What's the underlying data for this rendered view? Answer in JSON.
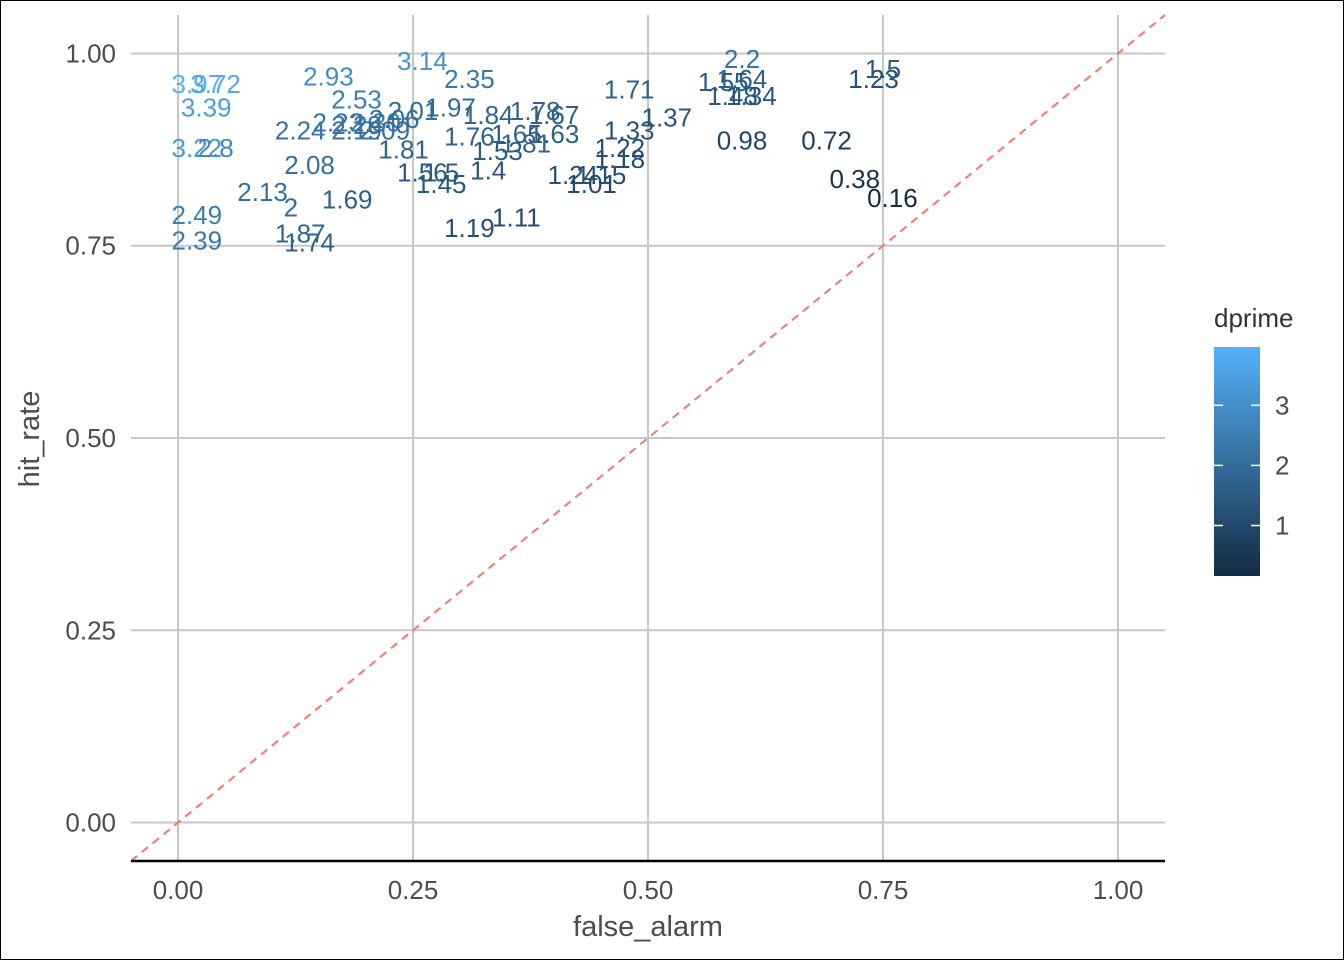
{
  "chart_data": {
    "type": "scatter",
    "xlabel": "false_alarm",
    "ylabel": "hit_rate",
    "xlim": [
      -0.05,
      1.05
    ],
    "ylim": [
      -0.05,
      1.05
    ],
    "x_ticks": [
      "0.00",
      "0.25",
      "0.50",
      "0.75",
      "1.00"
    ],
    "y_ticks": [
      "0.00",
      "0.25",
      "0.50",
      "0.75",
      "1.00"
    ],
    "grid": true,
    "reference_line": {
      "type": "identity",
      "color": "#F8766D",
      "style": "dashed"
    },
    "color_by": "dprime",
    "colors": {
      "low": "#132B43",
      "high": "#56B1F7"
    },
    "legend": {
      "title": "dprime",
      "position": "right",
      "ticks": [
        "1",
        "2",
        "3"
      ],
      "range": [
        0.16,
        3.97
      ]
    },
    "points": [
      {
        "x": 0.02,
        "y": 0.96,
        "label": "3.97"
      },
      {
        "x": 0.04,
        "y": 0.96,
        "label": "3.72"
      },
      {
        "x": 0.03,
        "y": 0.93,
        "label": "3.39"
      },
      {
        "x": 0.02,
        "y": 0.877,
        "label": "3.22"
      },
      {
        "x": 0.04,
        "y": 0.877,
        "label": "2.8"
      },
      {
        "x": 0.26,
        "y": 0.99,
        "label": "3.14"
      },
      {
        "x": 0.16,
        "y": 0.97,
        "label": "2.93"
      },
      {
        "x": 0.19,
        "y": 0.94,
        "label": "2.53"
      },
      {
        "x": 0.31,
        "y": 0.967,
        "label": "2.35"
      },
      {
        "x": 0.02,
        "y": 0.79,
        "label": "2.49"
      },
      {
        "x": 0.02,
        "y": 0.757,
        "label": "2.39"
      },
      {
        "x": 0.09,
        "y": 0.82,
        "label": "2.13"
      },
      {
        "x": 0.12,
        "y": 0.8,
        "label": "2"
      },
      {
        "x": 0.14,
        "y": 0.855,
        "label": "2.08"
      },
      {
        "x": 0.13,
        "y": 0.766,
        "label": "1.87"
      },
      {
        "x": 0.14,
        "y": 0.754,
        "label": "1.74"
      },
      {
        "x": 0.18,
        "y": 0.81,
        "label": "1.69"
      },
      {
        "x": 0.13,
        "y": 0.9,
        "label": "2.24"
      },
      {
        "x": 0.17,
        "y": 0.91,
        "label": "2.23"
      },
      {
        "x": 0.19,
        "y": 0.907,
        "label": "2.29"
      },
      {
        "x": 0.21,
        "y": 0.91,
        "label": "2.30"
      },
      {
        "x": 0.23,
        "y": 0.915,
        "label": "2.06"
      },
      {
        "x": 0.22,
        "y": 0.9,
        "label": "2.09"
      },
      {
        "x": 0.19,
        "y": 0.9,
        "label": "2.19"
      },
      {
        "x": 0.25,
        "y": 0.925,
        "label": "2.01"
      },
      {
        "x": 0.29,
        "y": 0.93,
        "label": "1.97"
      },
      {
        "x": 0.33,
        "y": 0.92,
        "label": "1.84"
      },
      {
        "x": 0.38,
        "y": 0.925,
        "label": "1.78"
      },
      {
        "x": 0.4,
        "y": 0.92,
        "label": "1.67"
      },
      {
        "x": 0.24,
        "y": 0.875,
        "label": "1.81"
      },
      {
        "x": 0.31,
        "y": 0.892,
        "label": "1.76"
      },
      {
        "x": 0.36,
        "y": 0.895,
        "label": "1.65"
      },
      {
        "x": 0.4,
        "y": 0.895,
        "label": "1.63"
      },
      {
        "x": 0.34,
        "y": 0.873,
        "label": "1.53"
      },
      {
        "x": 0.26,
        "y": 0.845,
        "label": "1.56"
      },
      {
        "x": 0.28,
        "y": 0.845,
        "label": "1.5"
      },
      {
        "x": 0.28,
        "y": 0.83,
        "label": "1.45"
      },
      {
        "x": 0.33,
        "y": 0.848,
        "label": "1.4"
      },
      {
        "x": 0.31,
        "y": 0.773,
        "label": "1.19"
      },
      {
        "x": 0.36,
        "y": 0.787,
        "label": "1.11"
      },
      {
        "x": 0.37,
        "y": 0.883,
        "label": "1.81"
      },
      {
        "x": 0.42,
        "y": 0.842,
        "label": "1.24"
      },
      {
        "x": 0.45,
        "y": 0.842,
        "label": "1.15"
      },
      {
        "x": 0.44,
        "y": 0.83,
        "label": "1.01"
      },
      {
        "x": 0.47,
        "y": 0.877,
        "label": "1.22"
      },
      {
        "x": 0.47,
        "y": 0.863,
        "label": "1.18"
      },
      {
        "x": 0.48,
        "y": 0.9,
        "label": "1.33"
      },
      {
        "x": 0.52,
        "y": 0.917,
        "label": "1.37"
      },
      {
        "x": 0.48,
        "y": 0.953,
        "label": "1.71"
      },
      {
        "x": 0.6,
        "y": 0.993,
        "label": "2.2"
      },
      {
        "x": 0.6,
        "y": 0.967,
        "label": "1.64"
      },
      {
        "x": 0.58,
        "y": 0.963,
        "label": "1.55"
      },
      {
        "x": 0.59,
        "y": 0.945,
        "label": "1.48"
      },
      {
        "x": 0.61,
        "y": 0.945,
        "label": "1.34"
      },
      {
        "x": 0.75,
        "y": 0.98,
        "label": "1.5"
      },
      {
        "x": 0.74,
        "y": 0.967,
        "label": "1.23"
      },
      {
        "x": 0.6,
        "y": 0.887,
        "label": "0.98"
      },
      {
        "x": 0.69,
        "y": 0.887,
        "label": "0.72"
      },
      {
        "x": 0.72,
        "y": 0.837,
        "label": "0.38"
      },
      {
        "x": 0.76,
        "y": 0.812,
        "label": "0.16"
      }
    ]
  }
}
